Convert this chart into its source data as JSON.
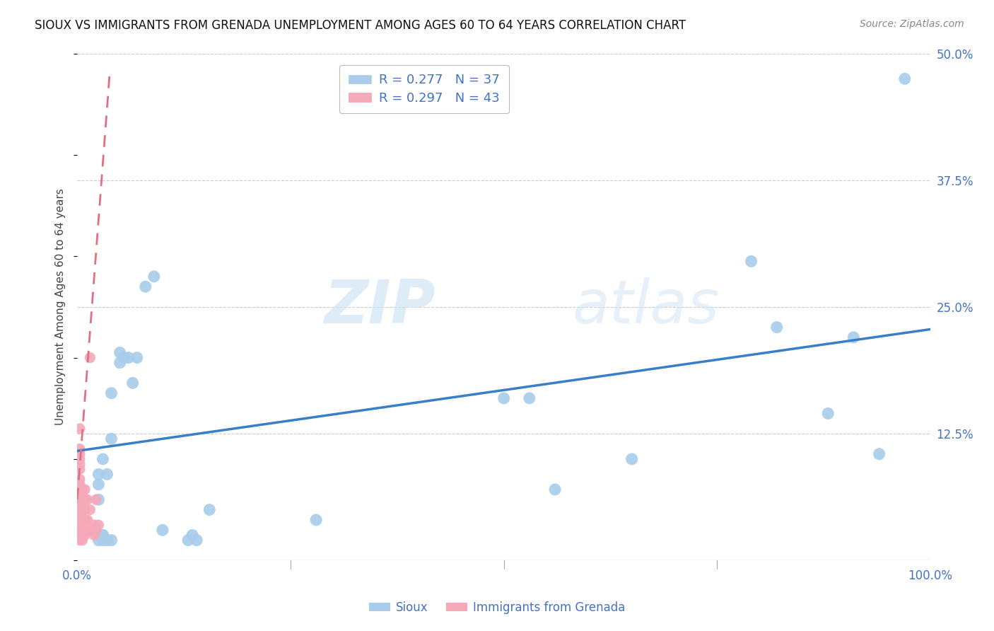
{
  "title": "SIOUX VS IMMIGRANTS FROM GRENADA UNEMPLOYMENT AMONG AGES 60 TO 64 YEARS CORRELATION CHART",
  "source": "Source: ZipAtlas.com",
  "ylabel": "Unemployment Among Ages 60 to 64 years",
  "xlim": [
    0.0,
    1.0
  ],
  "ylim": [
    0.0,
    0.5
  ],
  "yticks": [
    0.0,
    0.125,
    0.25,
    0.375,
    0.5
  ],
  "ytick_labels": [
    "",
    "12.5%",
    "25.0%",
    "37.5%",
    "50.0%"
  ],
  "xticks": [
    0.0,
    0.125,
    0.25,
    0.375,
    0.5,
    0.625,
    0.75,
    0.875,
    1.0
  ],
  "xtick_labels": [
    "0.0%",
    "",
    "",
    "",
    "",
    "",
    "",
    "",
    "100.0%"
  ],
  "sioux_R": 0.277,
  "sioux_N": 37,
  "grenada_R": 0.297,
  "grenada_N": 43,
  "sioux_color": "#A8CCEA",
  "grenada_color": "#F4A8B8",
  "sioux_line_color": "#3A7EC8",
  "grenada_line_color": "#E07080",
  "watermark_zip": "ZIP",
  "watermark_atlas": "atlas",
  "sioux_x": [
    0.025,
    0.025,
    0.025,
    0.025,
    0.03,
    0.03,
    0.03,
    0.03,
    0.035,
    0.035,
    0.04,
    0.04,
    0.04,
    0.05,
    0.05,
    0.055,
    0.06,
    0.065,
    0.07,
    0.08,
    0.09,
    0.1,
    0.13,
    0.135,
    0.14,
    0.155,
    0.28,
    0.5,
    0.53,
    0.56,
    0.65,
    0.79,
    0.82,
    0.88,
    0.91,
    0.94,
    0.97
  ],
  "sioux_y": [
    0.085,
    0.075,
    0.06,
    0.02,
    0.02,
    0.025,
    0.025,
    0.1,
    0.02,
    0.085,
    0.165,
    0.12,
    0.02,
    0.195,
    0.205,
    0.2,
    0.2,
    0.175,
    0.2,
    0.27,
    0.28,
    0.03,
    0.02,
    0.025,
    0.02,
    0.05,
    0.04,
    0.16,
    0.16,
    0.07,
    0.1,
    0.295,
    0.23,
    0.145,
    0.22,
    0.105,
    0.475
  ],
  "grenada_x": [
    0.003,
    0.003,
    0.003,
    0.003,
    0.003,
    0.003,
    0.003,
    0.003,
    0.003,
    0.003,
    0.003,
    0.003,
    0.003,
    0.003,
    0.003,
    0.003,
    0.003,
    0.003,
    0.003,
    0.006,
    0.006,
    0.006,
    0.006,
    0.006,
    0.006,
    0.006,
    0.009,
    0.009,
    0.009,
    0.009,
    0.009,
    0.012,
    0.012,
    0.012,
    0.015,
    0.015,
    0.015,
    0.018,
    0.02,
    0.02,
    0.022,
    0.022,
    0.025
  ],
  "grenada_y": [
    0.02,
    0.025,
    0.03,
    0.035,
    0.04,
    0.045,
    0.05,
    0.055,
    0.06,
    0.065,
    0.07,
    0.075,
    0.08,
    0.09,
    0.095,
    0.1,
    0.105,
    0.11,
    0.13,
    0.02,
    0.025,
    0.03,
    0.04,
    0.05,
    0.06,
    0.07,
    0.025,
    0.04,
    0.05,
    0.06,
    0.07,
    0.03,
    0.04,
    0.06,
    0.03,
    0.05,
    0.2,
    0.03,
    0.025,
    0.035,
    0.03,
    0.06,
    0.035
  ],
  "sioux_line_x0": 0.0,
  "sioux_line_x1": 1.0,
  "sioux_line_y0": 0.108,
  "sioux_line_y1": 0.228,
  "grenada_line_x0": 0.0,
  "grenada_line_x1": 0.038,
  "grenada_line_y0": 0.06,
  "grenada_line_y1": 0.48
}
